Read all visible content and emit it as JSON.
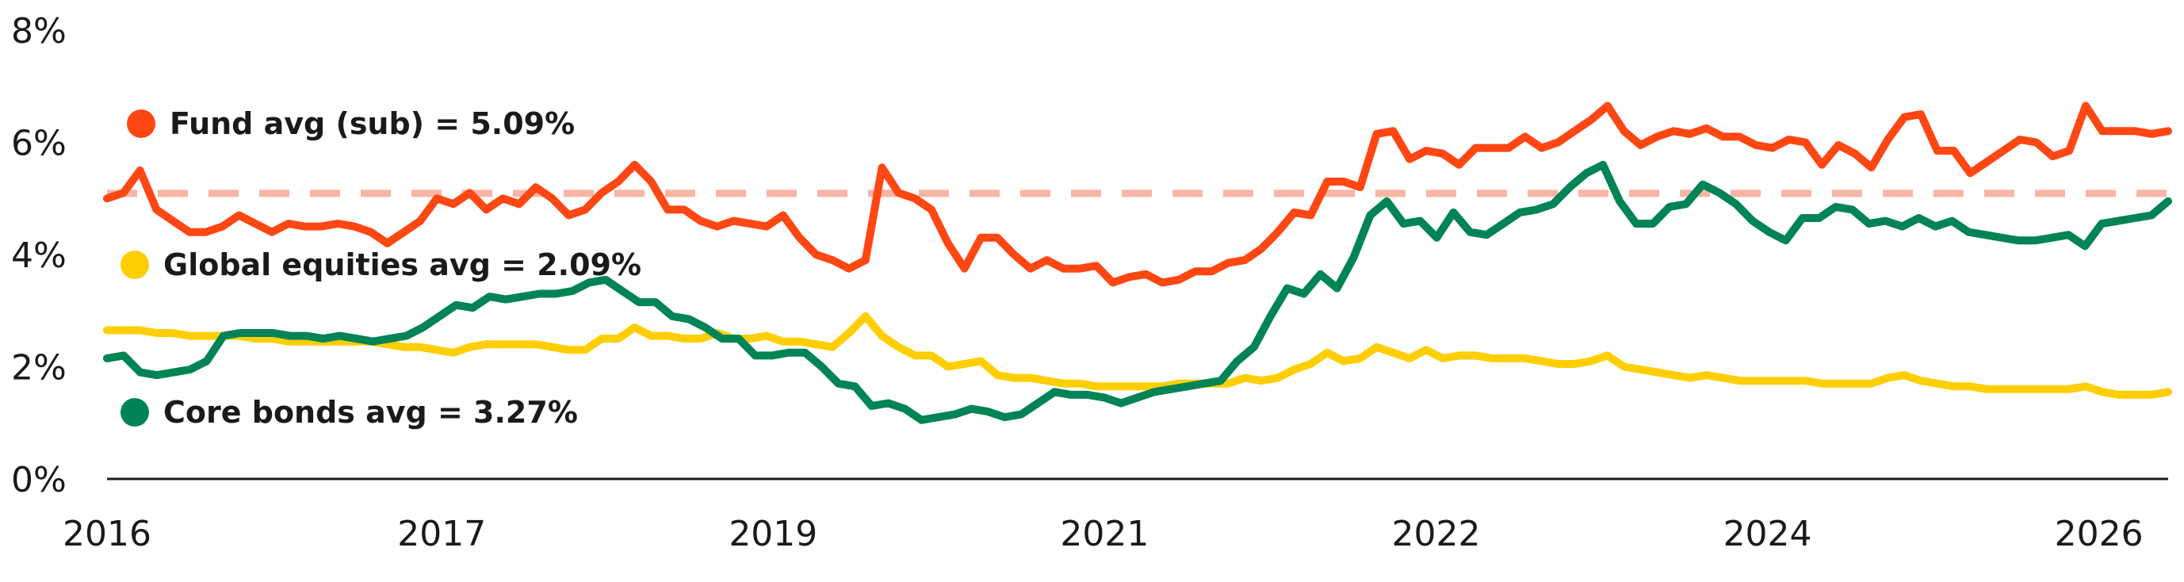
{
  "chart_data": {
    "type": "line",
    "title": "",
    "xlabel": "",
    "ylabel": "",
    "ylim": [
      0,
      8
    ],
    "yticks": [
      "0%",
      "2%",
      "4%",
      "6%",
      "8%"
    ],
    "ytick_values": [
      0,
      2,
      4,
      6,
      8
    ],
    "xlim": [
      0,
      125
    ],
    "xticks": [
      "2016",
      "2017",
      "2019",
      "2021",
      "2022",
      "2024",
      "2026"
    ],
    "xtick_positions": [
      0,
      20.3,
      40.4,
      60.5,
      80.6,
      100.7,
      120.8
    ],
    "grid": false,
    "series": [
      {
        "key": "fund",
        "color": "#ff4713",
        "values": [
          5.0,
          5.1,
          5.5,
          4.8,
          4.6,
          4.4,
          4.4,
          4.5,
          4.7,
          4.55,
          4.4,
          4.55,
          4.5,
          4.5,
          4.55,
          4.5,
          4.4,
          4.2,
          4.4,
          4.6,
          5.0,
          4.9,
          5.1,
          4.8,
          5.0,
          4.9,
          5.2,
          5.0,
          4.7,
          4.8,
          5.1,
          5.3,
          5.6,
          5.3,
          4.8,
          4.8,
          4.6,
          4.5,
          4.6,
          4.55,
          4.5,
          4.7,
          4.3,
          4.0,
          3.9,
          3.75,
          3.9,
          5.55,
          5.1,
          5.0,
          4.8,
          4.2,
          3.75,
          4.3,
          4.3,
          4.0,
          3.75,
          3.9,
          3.75,
          3.75,
          3.8,
          3.5,
          3.6,
          3.65,
          3.5,
          3.55,
          3.7,
          3.7,
          3.85,
          3.9,
          4.1,
          4.4,
          4.75,
          4.7,
          5.3,
          5.3,
          5.2,
          6.15,
          6.2,
          5.7,
          5.85,
          5.8,
          5.6,
          5.9,
          5.9,
          5.9,
          6.1,
          5.9,
          6.0,
          6.2,
          6.4,
          6.65,
          6.2,
          5.95,
          6.1,
          6.2,
          6.15,
          6.25,
          6.1,
          6.1,
          5.95,
          5.9,
          6.05,
          6.0,
          5.6,
          5.95,
          5.8,
          5.55,
          6.05,
          6.45,
          6.5,
          5.85,
          5.85,
          5.45,
          5.65,
          5.85,
          6.05,
          6.0,
          5.75,
          5.85,
          6.65,
          6.2,
          6.2,
          6.2,
          6.15,
          6.2
        ]
      },
      {
        "key": "equities",
        "color": "#ffce00",
        "values": [
          2.65,
          2.65,
          2.65,
          2.6,
          2.6,
          2.55,
          2.55,
          2.55,
          2.55,
          2.5,
          2.5,
          2.45,
          2.45,
          2.45,
          2.45,
          2.45,
          2.45,
          2.4,
          2.35,
          2.35,
          2.3,
          2.25,
          2.35,
          2.4,
          2.4,
          2.4,
          2.4,
          2.35,
          2.3,
          2.3,
          2.5,
          2.5,
          2.7,
          2.55,
          2.55,
          2.5,
          2.5,
          2.6,
          2.5,
          2.5,
          2.55,
          2.45,
          2.45,
          2.4,
          2.35,
          2.6,
          2.9,
          2.55,
          2.35,
          2.2,
          2.2,
          2.0,
          2.05,
          2.1,
          1.85,
          1.8,
          1.8,
          1.75,
          1.7,
          1.7,
          1.65,
          1.65,
          1.65,
          1.65,
          1.65,
          1.7,
          1.7,
          1.7,
          1.7,
          1.8,
          1.75,
          1.8,
          1.95,
          2.05,
          2.25,
          2.1,
          2.15,
          2.35,
          2.25,
          2.15,
          2.3,
          2.15,
          2.2,
          2.2,
          2.15,
          2.15,
          2.15,
          2.1,
          2.05,
          2.05,
          2.1,
          2.2,
          2.0,
          1.95,
          1.9,
          1.85,
          1.8,
          1.85,
          1.8,
          1.75,
          1.75,
          1.75,
          1.75,
          1.75,
          1.7,
          1.7,
          1.7,
          1.7,
          1.8,
          1.85,
          1.75,
          1.7,
          1.65,
          1.65,
          1.6,
          1.6,
          1.6,
          1.6,
          1.6,
          1.6,
          1.65,
          1.55,
          1.5,
          1.5,
          1.5,
          1.55
        ]
      },
      {
        "key": "bonds",
        "color": "#008455",
        "values": [
          2.15,
          2.2,
          1.9,
          1.85,
          1.9,
          1.95,
          2.1,
          2.55,
          2.6,
          2.6,
          2.6,
          2.55,
          2.55,
          2.5,
          2.55,
          2.5,
          2.45,
          2.5,
          2.55,
          2.7,
          2.9,
          3.1,
          3.05,
          3.25,
          3.2,
          3.25,
          3.3,
          3.3,
          3.35,
          3.5,
          3.55,
          3.35,
          3.15,
          3.15,
          2.9,
          2.85,
          2.7,
          2.5,
          2.5,
          2.2,
          2.2,
          2.25,
          2.25,
          2.0,
          1.7,
          1.65,
          1.3,
          1.35,
          1.25,
          1.05,
          1.1,
          1.15,
          1.25,
          1.2,
          1.1,
          1.15,
          1.35,
          1.55,
          1.5,
          1.5,
          1.45,
          1.35,
          1.45,
          1.55,
          1.6,
          1.65,
          1.7,
          1.75,
          2.1,
          2.35,
          2.9,
          3.4,
          3.3,
          3.65,
          3.4,
          3.95,
          4.7,
          4.95,
          4.55,
          4.6,
          4.3,
          4.75,
          4.4,
          4.35,
          4.55,
          4.75,
          4.8,
          4.9,
          5.2,
          5.45,
          5.6,
          4.95,
          4.55,
          4.55,
          4.85,
          4.9,
          5.25,
          5.1,
          4.9,
          4.6,
          4.4,
          4.25,
          4.65,
          4.65,
          4.85,
          4.8,
          4.55,
          4.6,
          4.5,
          4.65,
          4.5,
          4.6,
          4.4,
          4.35,
          4.3,
          4.25,
          4.25,
          4.3,
          4.35,
          4.15,
          4.55,
          4.6,
          4.65,
          4.7,
          4.95
        ]
      }
    ],
    "averages": [
      {
        "key": "fund",
        "value": 5.09,
        "color": "#f8b4a4"
      }
    ],
    "legend": [
      {
        "label": "Fund avg (sub) = 5.09%",
        "color": "#ff4713"
      },
      {
        "label": "Global equities avg = 2.09%",
        "color": "#ffce00"
      },
      {
        "label": "Core bonds avg = 3.27%",
        "color": "#008455"
      }
    ]
  }
}
